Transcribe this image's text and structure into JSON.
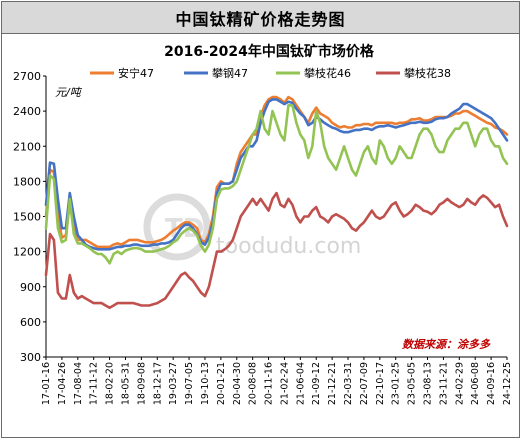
{
  "header": {
    "title": "中国钛精矿价格走势图"
  },
  "chart_data": {
    "type": "line",
    "title": "2016-2024年中国钛矿市场价格",
    "ylabel": "元/吨",
    "ylim": [
      300,
      2700
    ],
    "yticks": [
      300,
      600,
      900,
      1200,
      1500,
      1800,
      2100,
      2400,
      2700
    ],
    "xticks": [
      "17-01-16",
      "17-04-26",
      "17-08-04",
      "17-11-12",
      "18-02-20",
      "18-05-31",
      "18-09-08",
      "18-12-17",
      "19-03-27",
      "19-07-05",
      "19-10-13",
      "20-01-21",
      "20-04-30",
      "20-08-08",
      "20-11-16",
      "21-02-24",
      "21-06-04",
      "21-09-12",
      "21-12-21",
      "22-03-31",
      "22-07-09",
      "22-10-17",
      "23-01-25",
      "23-05-05",
      "23-08-13",
      "23-11-21",
      "24-02-29",
      "24-06-08",
      "24-09-16",
      "24-12-25"
    ],
    "source_note": "数据来源：涂多多",
    "watermark": "toodudu.com",
    "grid": false,
    "legend_position": "top",
    "series": [
      {
        "name": "安宁47",
        "color": "#ed7d31",
        "values": [
          1500,
          1900,
          1880,
          1500,
          1320,
          1340,
          1620,
          1400,
          1300,
          1300,
          1300,
          1280,
          1260,
          1240,
          1240,
          1240,
          1240,
          1260,
          1270,
          1260,
          1280,
          1300,
          1300,
          1300,
          1290,
          1280,
          1280,
          1280,
          1290,
          1300,
          1320,
          1350,
          1380,
          1400,
          1430,
          1450,
          1450,
          1430,
          1400,
          1300,
          1280,
          1350,
          1500,
          1750,
          1800,
          1780,
          1780,
          1800,
          1950,
          2050,
          2100,
          2150,
          2200,
          2200,
          2350,
          2450,
          2500,
          2520,
          2520,
          2500,
          2470,
          2520,
          2500,
          2450,
          2400,
          2350,
          2300,
          2380,
          2430,
          2380,
          2360,
          2340,
          2300,
          2280,
          2260,
          2270,
          2260,
          2260,
          2280,
          2280,
          2290,
          2290,
          2280,
          2300,
          2300,
          2300,
          2300,
          2300,
          2290,
          2300,
          2300,
          2310,
          2330,
          2330,
          2340,
          2320,
          2320,
          2330,
          2350,
          2350,
          2350,
          2350,
          2360,
          2380,
          2380,
          2400,
          2400,
          2380,
          2360,
          2340,
          2320,
          2300,
          2290,
          2260,
          2250,
          2230,
          2200
        ]
      },
      {
        "name": "攀钢47",
        "color": "#4472c4",
        "values": [
          1600,
          1960,
          1950,
          1650,
          1400,
          1400,
          1700,
          1500,
          1340,
          1300,
          1260,
          1240,
          1230,
          1220,
          1220,
          1220,
          1220,
          1230,
          1240,
          1240,
          1250,
          1250,
          1260,
          1260,
          1250,
          1250,
          1250,
          1260,
          1260,
          1270,
          1270,
          1280,
          1300,
          1350,
          1400,
          1430,
          1430,
          1400,
          1350,
          1280,
          1260,
          1320,
          1450,
          1700,
          1780,
          1780,
          1780,
          1800,
          1900,
          2000,
          2050,
          2100,
          2100,
          2150,
          2300,
          2400,
          2480,
          2500,
          2500,
          2480,
          2460,
          2480,
          2470,
          2420,
          2380,
          2350,
          2280,
          2300,
          2350,
          2330,
          2300,
          2280,
          2260,
          2250,
          2230,
          2220,
          2220,
          2230,
          2240,
          2240,
          2250,
          2250,
          2240,
          2260,
          2270,
          2270,
          2280,
          2270,
          2260,
          2270,
          2280,
          2290,
          2300,
          2300,
          2310,
          2300,
          2300,
          2310,
          2330,
          2340,
          2340,
          2350,
          2380,
          2400,
          2420,
          2460,
          2460,
          2440,
          2420,
          2400,
          2380,
          2360,
          2340,
          2300,
          2250,
          2200,
          2150
        ]
      },
      {
        "name": "攀枝花46",
        "color": "#92c353",
        "values": [
          1400,
          1850,
          1820,
          1400,
          1280,
          1300,
          1650,
          1350,
          1270,
          1270,
          1250,
          1230,
          1200,
          1180,
          1180,
          1150,
          1100,
          1180,
          1200,
          1180,
          1210,
          1220,
          1230,
          1230,
          1220,
          1200,
          1200,
          1200,
          1210,
          1220,
          1230,
          1250,
          1280,
          1300,
          1350,
          1380,
          1400,
          1380,
          1340,
          1250,
          1200,
          1260,
          1400,
          1650,
          1730,
          1740,
          1740,
          1760,
          1800,
          1900,
          2000,
          2100,
          2200,
          2250,
          2400,
          2250,
          2200,
          2400,
          2300,
          2200,
          2150,
          2450,
          2450,
          2300,
          2200,
          2150,
          2000,
          2100,
          2400,
          2300,
          2100,
          2000,
          1950,
          1900,
          2000,
          2100,
          2000,
          1900,
          1850,
          1950,
          2050,
          2100,
          2000,
          1950,
          2150,
          2100,
          2000,
          1950,
          2000,
          2100,
          2050,
          2000,
          2000,
          2100,
          2200,
          2250,
          2250,
          2200,
          2100,
          2050,
          2050,
          2150,
          2200,
          2250,
          2250,
          2300,
          2300,
          2200,
          2100,
          2200,
          2250,
          2250,
          2150,
          2100,
          2100,
          2000,
          1950
        ]
      },
      {
        "name": "攀枝花38",
        "color": "#c0504d",
        "values": [
          1000,
          1350,
          1300,
          850,
          800,
          800,
          1000,
          850,
          800,
          820,
          800,
          780,
          760,
          760,
          760,
          740,
          720,
          740,
          760,
          760,
          760,
          760,
          760,
          750,
          740,
          740,
          740,
          750,
          760,
          780,
          800,
          850,
          900,
          950,
          1000,
          1020,
          980,
          950,
          900,
          850,
          820,
          900,
          1050,
          1200,
          1200,
          1220,
          1250,
          1300,
          1400,
          1500,
          1550,
          1600,
          1650,
          1600,
          1650,
          1600,
          1550,
          1650,
          1700,
          1600,
          1580,
          1650,
          1600,
          1500,
          1450,
          1500,
          1500,
          1550,
          1580,
          1500,
          1480,
          1450,
          1500,
          1520,
          1500,
          1480,
          1450,
          1400,
          1380,
          1420,
          1450,
          1500,
          1550,
          1500,
          1480,
          1500,
          1550,
          1600,
          1620,
          1550,
          1500,
          1520,
          1550,
          1600,
          1580,
          1550,
          1540,
          1520,
          1550,
          1600,
          1620,
          1650,
          1620,
          1600,
          1580,
          1600,
          1650,
          1620,
          1600,
          1650,
          1680,
          1660,
          1620,
          1580,
          1600,
          1500,
          1420
        ]
      }
    ]
  }
}
